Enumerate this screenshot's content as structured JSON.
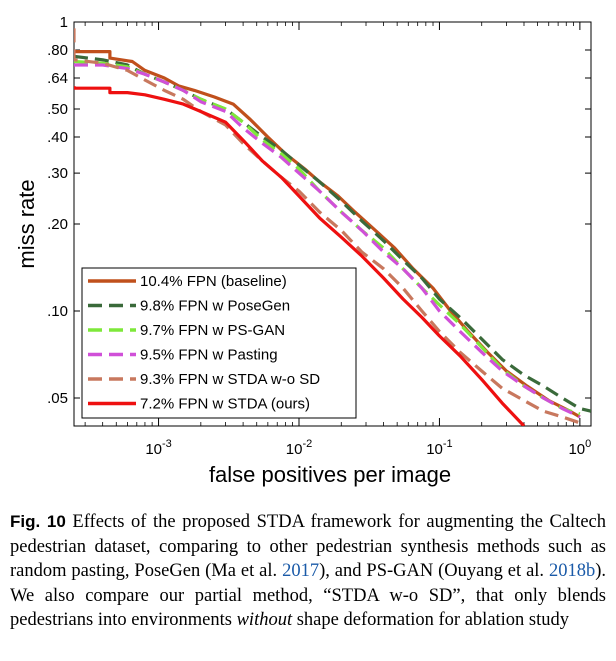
{
  "chart_data": {
    "type": "line",
    "title": "",
    "xlabel": "false positives per image",
    "ylabel": "miss rate",
    "x_scale": "log",
    "y_scale": "log",
    "xlim": [
      0.00025,
      1.2
    ],
    "ylim": [
      0.04,
      1
    ],
    "x_ticks": [
      {
        "value": 0.001,
        "base": "10",
        "exp": "-3"
      },
      {
        "value": 0.01,
        "base": "10",
        "exp": "-2"
      },
      {
        "value": 0.1,
        "base": "10",
        "exp": "-1"
      },
      {
        "value": 1,
        "base": "10",
        "exp": "0"
      }
    ],
    "y_ticks": [
      {
        "value": 1,
        "label": "1"
      },
      {
        "value": 0.8,
        "label": ".80"
      },
      {
        "value": 0.64,
        "label": ".64"
      },
      {
        "value": 0.5,
        "label": ".50"
      },
      {
        "value": 0.4,
        "label": ".40"
      },
      {
        "value": 0.3,
        "label": ".30"
      },
      {
        "value": 0.2,
        "label": ".20"
      },
      {
        "value": 0.1,
        "label": ".10"
      },
      {
        "value": 0.05,
        "label": ".05"
      }
    ],
    "grid": false,
    "legend_position": "bottom-left",
    "series": [
      {
        "name": "10.4% FPN (baseline)",
        "color": "#c0501c",
        "dash": "solid",
        "x": [
          0.00025,
          0.00025,
          0.00045,
          0.00045,
          0.00065,
          0.0008,
          0.0011,
          0.0014,
          0.0018,
          0.0025,
          0.0034,
          0.0045,
          0.006,
          0.008,
          0.011,
          0.014,
          0.019,
          0.025,
          0.035,
          0.048,
          0.065,
          0.09,
          0.12,
          0.16,
          0.22,
          0.3,
          0.42,
          0.6,
          0.85,
          1.0
        ],
        "y": [
          0.8,
          0.79,
          0.79,
          0.75,
          0.73,
          0.68,
          0.64,
          0.6,
          0.58,
          0.55,
          0.52,
          0.46,
          0.4,
          0.35,
          0.31,
          0.28,
          0.25,
          0.22,
          0.19,
          0.165,
          0.14,
          0.12,
          0.1,
          0.085,
          0.072,
          0.062,
          0.055,
          0.049,
          0.045,
          0.043
        ]
      },
      {
        "name": "9.8% FPN w PoseGen",
        "color": "#3a6a3a",
        "dash": "dashed",
        "x": [
          0.00025,
          0.0004,
          0.0006,
          0.0008,
          0.0011,
          0.0015,
          0.002,
          0.003,
          0.004,
          0.0055,
          0.0075,
          0.01,
          0.014,
          0.02,
          0.028,
          0.04,
          0.055,
          0.075,
          0.1,
          0.14,
          0.2,
          0.28,
          0.4,
          0.55,
          0.75,
          1.0,
          1.2
        ],
        "y": [
          0.76,
          0.74,
          0.71,
          0.66,
          0.62,
          0.58,
          0.54,
          0.5,
          0.45,
          0.4,
          0.36,
          0.32,
          0.28,
          0.24,
          0.205,
          0.175,
          0.15,
          0.13,
          0.11,
          0.095,
          0.08,
          0.068,
          0.06,
          0.055,
          0.05,
          0.046,
          0.045
        ]
      },
      {
        "name": "9.7% FPN w PS-GAN",
        "color": "#7ee83a",
        "dash": "dashed",
        "x": [
          0.00025,
          0.0004,
          0.0006,
          0.0008,
          0.0011,
          0.0015,
          0.002,
          0.003,
          0.004,
          0.0055,
          0.0075,
          0.01,
          0.014,
          0.02,
          0.028,
          0.04,
          0.055,
          0.075,
          0.1,
          0.14,
          0.2,
          0.28,
          0.4,
          0.55,
          0.75,
          1.0
        ],
        "y": [
          0.73,
          0.72,
          0.7,
          0.66,
          0.62,
          0.58,
          0.54,
          0.5,
          0.45,
          0.39,
          0.35,
          0.31,
          0.26,
          0.22,
          0.19,
          0.165,
          0.14,
          0.12,
          0.105,
          0.09,
          0.075,
          0.063,
          0.055,
          0.05,
          0.046,
          0.044
        ]
      },
      {
        "name": "9.5% FPN w Pasting",
        "color": "#d050d8",
        "dash": "dashed",
        "x": [
          0.00025,
          0.0004,
          0.0006,
          0.0008,
          0.0011,
          0.0015,
          0.002,
          0.003,
          0.004,
          0.0055,
          0.0075,
          0.01,
          0.014,
          0.02,
          0.028,
          0.04,
          0.055,
          0.075,
          0.1,
          0.14,
          0.2,
          0.28,
          0.4,
          0.55,
          0.75,
          1.0
        ],
        "y": [
          0.71,
          0.71,
          0.69,
          0.66,
          0.62,
          0.58,
          0.53,
          0.49,
          0.43,
          0.38,
          0.34,
          0.3,
          0.26,
          0.22,
          0.19,
          0.16,
          0.14,
          0.12,
          0.1,
          0.085,
          0.072,
          0.062,
          0.055,
          0.05,
          0.046,
          0.043
        ]
      },
      {
        "name": "9.3% FPN w STDA w-o SD",
        "color": "#c8785e",
        "dash": "dashed",
        "x": [
          0.00025,
          0.00025,
          0.0004,
          0.0006,
          0.0008,
          0.0011,
          0.0015,
          0.002,
          0.003,
          0.004,
          0.0055,
          0.0075,
          0.01,
          0.014,
          0.02,
          0.028,
          0.04,
          0.055,
          0.075,
          0.1,
          0.14,
          0.2,
          0.28,
          0.4,
          0.55,
          0.75,
          1.0
        ],
        "y": [
          0.95,
          0.74,
          0.72,
          0.68,
          0.63,
          0.58,
          0.54,
          0.49,
          0.44,
          0.38,
          0.33,
          0.29,
          0.26,
          0.22,
          0.19,
          0.16,
          0.14,
          0.12,
          0.1,
          0.085,
          0.072,
          0.062,
          0.054,
          0.049,
          0.045,
          0.043,
          0.041
        ]
      },
      {
        "name": "7.2% FPN w STDA (ours)",
        "color": "#ee1010",
        "dash": "solid",
        "x": [
          0.00025,
          0.00025,
          0.00045,
          0.00045,
          0.0006,
          0.0008,
          0.0011,
          0.0015,
          0.002,
          0.003,
          0.004,
          0.0055,
          0.0075,
          0.01,
          0.014,
          0.02,
          0.028,
          0.04,
          0.055,
          0.075,
          0.1,
          0.14,
          0.2,
          0.28,
          0.4
        ],
        "y": [
          0.6,
          0.59,
          0.59,
          0.57,
          0.57,
          0.56,
          0.54,
          0.52,
          0.49,
          0.45,
          0.39,
          0.33,
          0.29,
          0.25,
          0.21,
          0.18,
          0.155,
          0.13,
          0.11,
          0.095,
          0.082,
          0.07,
          0.058,
          0.048,
          0.04
        ]
      }
    ]
  },
  "caption": {
    "fig_label": "Fig. 10",
    "text_1": "Effects of the proposed STDA framework for augmenting the Caltech pedestrian dataset, comparing to other pedestrian synthesis methods such as random pasting, PoseGen (Ma et al.",
    "cite_1": "2017",
    "text_2": "), and PS-GAN (Ouyang et al.",
    "cite_2": "2018b",
    "text_3": "). We also compare our partial method, “STDA w-o SD”, that only blends pedestrians into environments",
    "italic_1": "without",
    "text_4": "shape deformation for ablation study"
  }
}
